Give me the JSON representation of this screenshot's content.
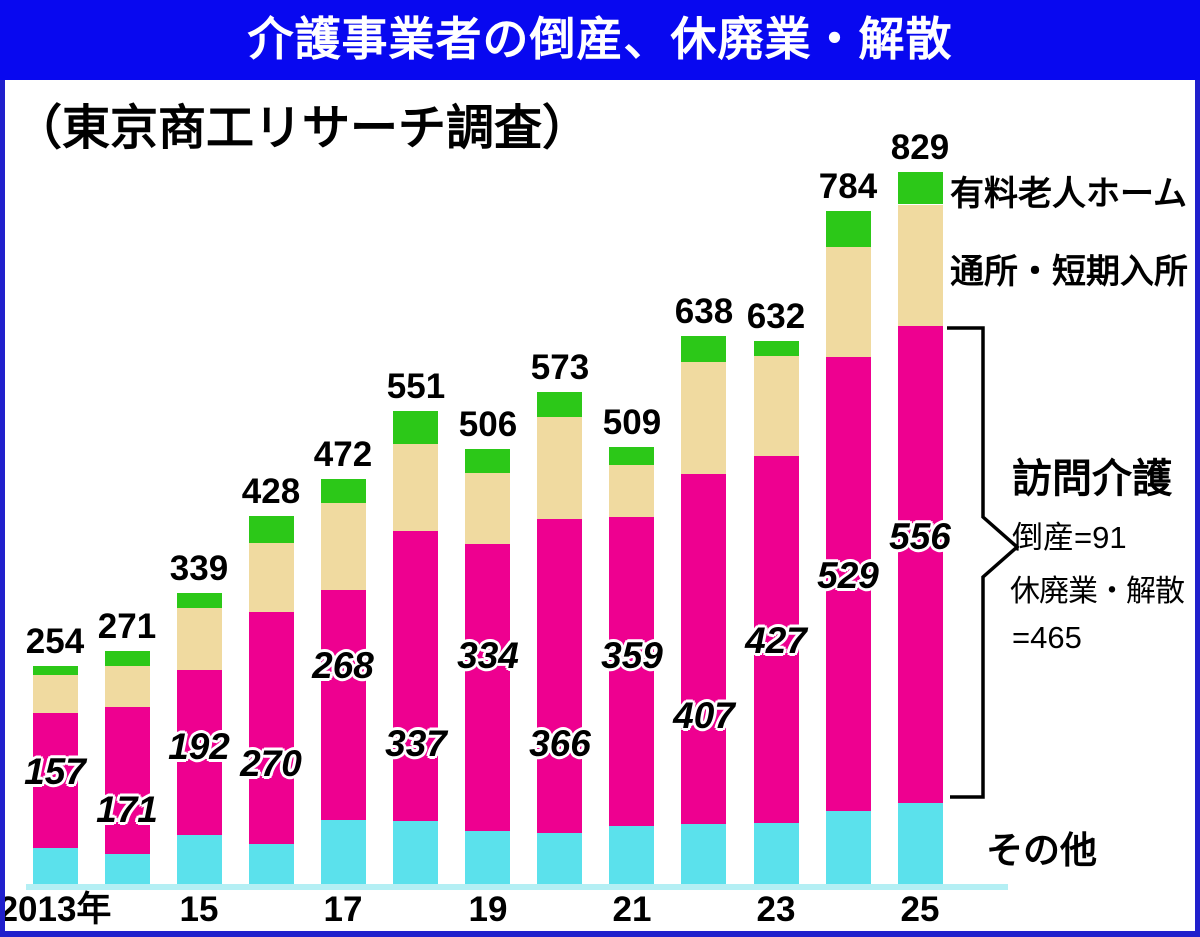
{
  "title": "介護事業者の倒産、休廃業・解散",
  "subtitle": "（東京商工リサーチ調査）",
  "colors": {
    "header_blue": "#0808F0",
    "frame_blue": "#2020CC",
    "axis_line_cyan": "#B4EFF4",
    "others_cyan": "#5BE1EC",
    "homecare_magenta": "#EE0090",
    "daycare_tan": "#F0DAA0",
    "paid_home_green": "#2CC818",
    "text_black": "#000000",
    "title_white": "#FFFFFF"
  },
  "chart_data": {
    "type": "bar",
    "stacked": true,
    "title": "介護事業者の倒産、休廃業・解散",
    "source": "（東京商工リサーチ調査）",
    "categories": [
      "2013",
      "2014",
      "2015",
      "2016",
      "2017",
      "2018",
      "2019",
      "2020",
      "2021",
      "2022",
      "2023",
      "2024",
      "2025"
    ],
    "x_tick_labels": [
      "2013年",
      "15",
      "17",
      "19",
      "21",
      "23",
      "25"
    ],
    "totals": [
      254,
      271,
      339,
      428,
      472,
      551,
      506,
      573,
      509,
      638,
      632,
      784,
      829
    ],
    "series": [
      {
        "key": "others",
        "name": "その他",
        "color": "#5BE1EC",
        "labeled_on_chart": false,
        "values": [
          42,
          35,
          57,
          47,
          74,
          74,
          62,
          59,
          68,
          70,
          71,
          85,
          94
        ]
      },
      {
        "key": "homecare",
        "name": "訪問介護",
        "color": "#EE0090",
        "labeled_on_chart": true,
        "values": [
          157,
          171,
          192,
          270,
          268,
          337,
          334,
          366,
          359,
          407,
          427,
          529,
          556
        ]
      },
      {
        "key": "daycare",
        "name": "通所・短期入所",
        "color": "#F0DAA0",
        "labeled_on_chart": false,
        "values": [
          44,
          48,
          72,
          80,
          102,
          101,
          82,
          119,
          61,
          131,
          117,
          128,
          141
        ]
      },
      {
        "key": "paid_home",
        "name": "有料老人ホーム",
        "color": "#2CC818",
        "labeled_on_chart": false,
        "values": [
          11,
          17,
          18,
          31,
          28,
          39,
          28,
          29,
          21,
          30,
          17,
          42,
          38
        ]
      }
    ],
    "series_note": "stack order bottom to top; その他/通所・短期入所/有料老人ホーム segment values estimated from bar heights, totals and 訪問介護 values printed on chart",
    "ylim": [
      0,
      860
    ],
    "grid": false,
    "annotations": {
      "paid_home_label": "有料老人ホーム",
      "daycare_label": "通所・短期入所",
      "homon": {
        "title": "訪問介護",
        "lines": [
          "倒産=91",
          "休廃業・解散",
          "=465"
        ]
      },
      "others_label": "その他"
    }
  }
}
